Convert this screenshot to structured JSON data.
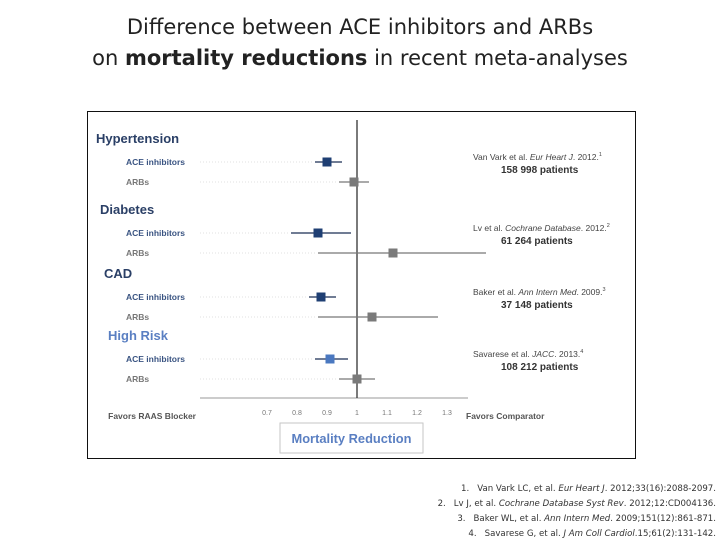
{
  "slide": {
    "title_line1": "Difference between ACE inhibitors and ARBs",
    "title_line2_pre": "on ",
    "title_line2_bold": "mortality reductions",
    "title_line2_post": " in recent meta-analyses"
  },
  "chart_data": {
    "type": "forest",
    "xlabel": "Mortality Reduction",
    "x_ticks": [
      "0.7",
      "0.8",
      "0.9",
      "1",
      "1.1",
      "1.2",
      "1.3"
    ],
    "xlim": [
      0.6,
      1.4
    ],
    "reference_line": 1,
    "left_label": "Favors RAAS Blocker",
    "right_label": "Favors Comparator",
    "colors": {
      "ace": "#1f3f73",
      "arb": "#7a7a7a",
      "high_risk_ace": "#4a78c0",
      "header": "#2a3f66",
      "high_risk_header": "#5a7fc2"
    },
    "groups": [
      {
        "name": "Hypertension",
        "study": "Van Vark et al. ",
        "journal": "Eur Heart J",
        "year": ". 2012.",
        "ref": "1",
        "patients": "158 998 patients",
        "rows": [
          {
            "label": "ACE inhibitors",
            "estimate": 0.9,
            "ci": [
              0.86,
              0.95
            ]
          },
          {
            "label": "ARBs",
            "estimate": 0.99,
            "ci": [
              0.94,
              1.04
            ]
          }
        ]
      },
      {
        "name": "Diabetes",
        "study": "Lv et al. ",
        "journal": "Cochrane Database",
        "year": ". 2012.",
        "ref": "2",
        "patients": "61 264 patients",
        "rows": [
          {
            "label": "ACE inhibitors",
            "estimate": 0.87,
            "ci": [
              0.78,
              0.98
            ]
          },
          {
            "label": "ARBs",
            "estimate": 1.12,
            "ci": [
              0.87,
              1.43
            ]
          }
        ]
      },
      {
        "name": "CAD",
        "study": "Baker et al. ",
        "journal": "Ann Intern Med",
        "year": ". 2009.",
        "ref": "3",
        "patients": "37 148 patients",
        "rows": [
          {
            "label": "ACE inhibitors",
            "estimate": 0.88,
            "ci": [
              0.84,
              0.93
            ]
          },
          {
            "label": "ARBs",
            "estimate": 1.05,
            "ci": [
              0.87,
              1.27
            ]
          }
        ]
      },
      {
        "name": "High Risk",
        "study": "Savarese et al. ",
        "journal": "JACC",
        "year": ". 2013.",
        "ref": "4",
        "patients": "108 212 patients",
        "rows": [
          {
            "label": "ACE inhibitors",
            "estimate": 0.91,
            "ci": [
              0.86,
              0.97
            ]
          },
          {
            "label": "ARBs",
            "estimate": 1.0,
            "ci": [
              0.94,
              1.06
            ]
          }
        ]
      }
    ]
  },
  "references": [
    {
      "num": "1.",
      "author": "Van Vark LC, et al. ",
      "journal": "Eur Heart J",
      "rest": ". 2012;33(16):2088-2097."
    },
    {
      "num": "2.",
      "author": "Lv J, et al. ",
      "journal": "Cochrane Database Syst Rev",
      "rest": ". 2012;12:CD004136."
    },
    {
      "num": "3.",
      "author": "Baker WL, et al. ",
      "journal": "Ann Intern Med",
      "rest": ". 2009;151(12):861-871."
    },
    {
      "num": "4.",
      "author": "Savarese G, et al. ",
      "journal": "J Am Coll Cardiol",
      "rest": ".15;61(2):131-142."
    }
  ]
}
